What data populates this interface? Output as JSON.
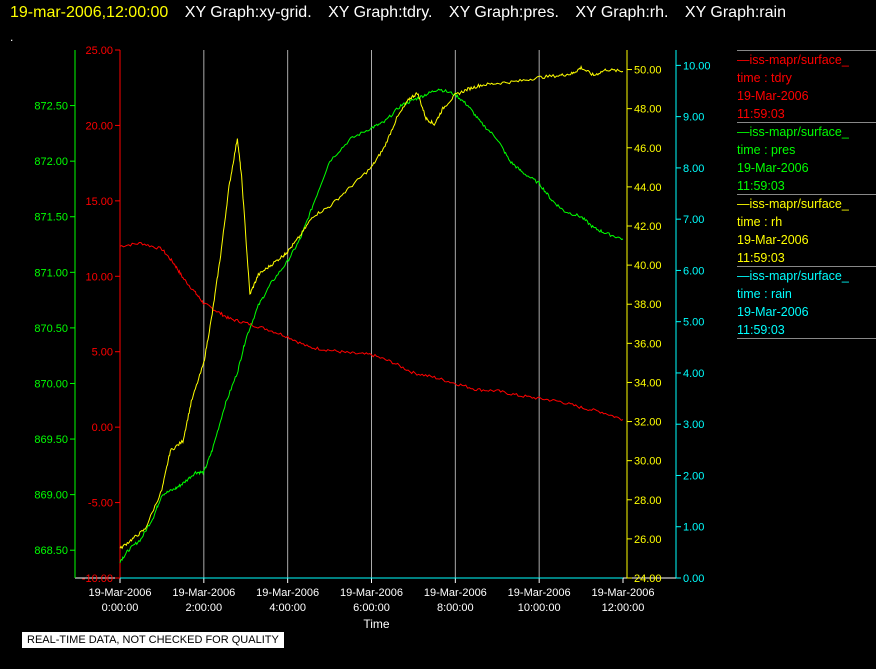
{
  "header": {
    "timestamp": "19-mar-2006,12:00:00",
    "graph_titles": [
      "XY Graph:xy-grid.",
      "XY Graph:tdry.",
      "XY Graph:pres.",
      "XY Graph:rh.",
      "XY Graph:rain"
    ],
    "dot": "."
  },
  "legend": [
    {
      "name": "iss-mapr/surface_",
      "field": "time : tdry",
      "date": "19-Mar-2006",
      "time": "11:59:03",
      "color": "#ff0000"
    },
    {
      "name": "iss-mapr/surface_",
      "field": "time : pres",
      "date": "19-Mar-2006",
      "time": "11:59:03",
      "color": "#00ff00"
    },
    {
      "name": "iss-mapr/surface_",
      "field": "time : rh",
      "date": "19-Mar-2006",
      "time": "11:59:03",
      "color": "#ffff00"
    },
    {
      "name": "iss-mapr/surface_",
      "field": "time : rain",
      "date": "19-Mar-2006",
      "time": "11:59:03",
      "color": "#00ffff"
    }
  ],
  "footer_note": "REAL-TIME DATA, NOT CHECKED FOR QUALITY",
  "chart_data": {
    "type": "line",
    "xlabel": "Time",
    "x_tick_labels": [
      [
        "19-Mar-2006",
        "0:00:00"
      ],
      [
        "19-Mar-2006",
        "2:00:00"
      ],
      [
        "19-Mar-2006",
        "4:00:00"
      ],
      [
        "19-Mar-2006",
        "6:00:00"
      ],
      [
        "19-Mar-2006",
        "8:00:00"
      ],
      [
        "19-Mar-2006",
        "10:00:00"
      ],
      [
        "19-Mar-2006",
        "12:00:00"
      ]
    ],
    "xlim_hours": [
      0,
      12
    ],
    "grid": "vertical",
    "axes": {
      "tdry": {
        "color": "#ff0000",
        "ylim": [
          -10,
          25
        ],
        "ticks": [
          "-10.00",
          "-5.00",
          "0.00",
          "5.00",
          "10.00",
          "15.00",
          "20.00",
          "25.00"
        ]
      },
      "pres": {
        "color": "#00ff00",
        "ylim": [
          868.25,
          873.0
        ],
        "ticks": [
          "868.50",
          "869.00",
          "869.50",
          "870.00",
          "870.50",
          "871.00",
          "871.50",
          "872.00",
          "872.50"
        ]
      },
      "rh": {
        "color": "#ffff00",
        "ylim": [
          24,
          51
        ],
        "ticks": [
          "24.00",
          "26.00",
          "28.00",
          "30.00",
          "32.00",
          "34.00",
          "36.00",
          "38.00",
          "40.00",
          "42.00",
          "44.00",
          "46.00",
          "48.00",
          "50.00"
        ]
      },
      "rain": {
        "color": "#00ffff",
        "ylim": [
          0,
          10.3
        ],
        "ticks": [
          "0.00",
          "1.00",
          "2.00",
          "3.00",
          "4.00",
          "5.00",
          "6.00",
          "7.00",
          "8.00",
          "9.00",
          "10.00"
        ]
      }
    },
    "series": [
      {
        "key": "tdry",
        "color": "#ff0000",
        "x": [
          0,
          0.5,
          1,
          1.3,
          1.5,
          1.8,
          2,
          2.3,
          2.6,
          3,
          3.5,
          4,
          4.5,
          5,
          5.5,
          6,
          6.5,
          7,
          7.5,
          8,
          8.5,
          9,
          9.5,
          10,
          10.5,
          11,
          11.5,
          12
        ],
        "y": [
          12.0,
          12.2,
          11.8,
          10.8,
          9.9,
          8.9,
          8.2,
          7.7,
          7.2,
          6.9,
          6.5,
          6.0,
          5.3,
          5.1,
          4.9,
          4.8,
          4.3,
          3.6,
          3.3,
          2.9,
          2.5,
          2.4,
          2.1,
          1.9,
          1.7,
          1.3,
          1.0,
          0.5
        ]
      },
      {
        "key": "pres",
        "color": "#00ff00",
        "x": [
          0,
          0.2,
          0.5,
          0.8,
          1,
          1.3,
          1.5,
          1.8,
          2,
          2.2,
          2.5,
          2.8,
          3,
          3.3,
          3.6,
          4,
          4.3,
          4.6,
          5,
          5.5,
          6,
          6.3,
          6.7,
          7,
          7.3,
          7.6,
          8,
          8.3,
          8.6,
          9,
          9.3,
          9.6,
          10,
          10.3,
          10.6,
          11,
          11.3,
          11.6,
          12
        ],
        "y": [
          868.4,
          868.5,
          868.6,
          868.8,
          869.0,
          869.05,
          869.1,
          869.2,
          869.2,
          869.4,
          869.8,
          870.1,
          870.4,
          870.7,
          870.9,
          871.1,
          871.3,
          871.6,
          872.0,
          872.2,
          872.3,
          872.35,
          872.5,
          872.55,
          872.6,
          872.65,
          872.6,
          872.5,
          872.35,
          872.2,
          872.0,
          871.9,
          871.8,
          871.65,
          871.55,
          871.5,
          871.4,
          871.35,
          871.3
        ]
      },
      {
        "key": "rh",
        "color": "#ffff00",
        "x": [
          0,
          0.3,
          0.6,
          1,
          1.2,
          1.5,
          1.7,
          2,
          2.2,
          2.4,
          2.6,
          2.8,
          2.9,
          3.1,
          3.3,
          3.6,
          3.9,
          4,
          4.3,
          4.6,
          5,
          5.5,
          6,
          6.3,
          6.6,
          6.9,
          7.1,
          7.3,
          7.5,
          7.7,
          8,
          8.3,
          8.6,
          9,
          9.5,
          10,
          10.5,
          10.8,
          11,
          11.3,
          11.6,
          12
        ],
        "y": [
          25.5,
          26.0,
          26.5,
          28.5,
          30.5,
          31.0,
          33.0,
          35.0,
          37.5,
          40.5,
          44.0,
          46.5,
          44.5,
          38.5,
          39.5,
          40.0,
          40.5,
          40.7,
          41.5,
          42.5,
          43.0,
          44.0,
          45.0,
          46.0,
          47.5,
          48.5,
          48.8,
          47.5,
          47.2,
          48.0,
          48.7,
          49.0,
          49.2,
          49.3,
          49.4,
          49.6,
          49.7,
          49.8,
          50.1,
          49.7,
          50.0,
          49.9
        ]
      },
      {
        "key": "rain",
        "color": "#00ffff",
        "x": [
          0,
          12
        ],
        "y": [
          0.0,
          0.0
        ]
      }
    ]
  }
}
